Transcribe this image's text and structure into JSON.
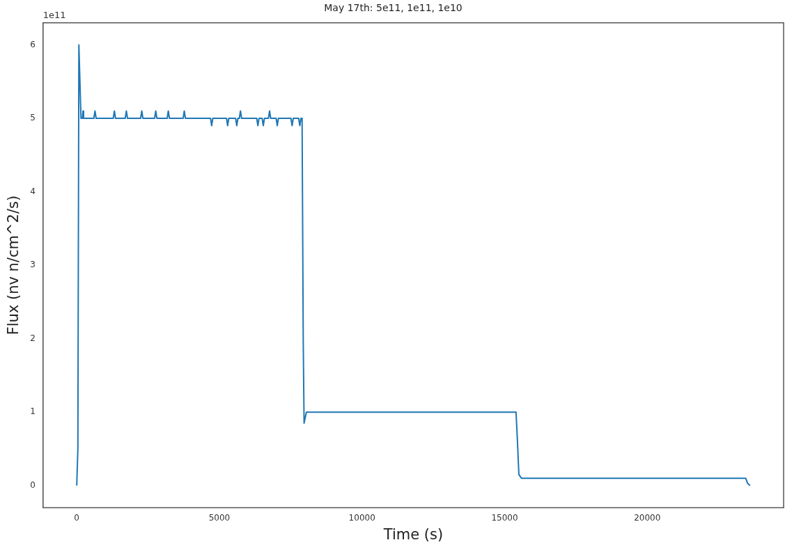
{
  "chart_data": {
    "type": "line",
    "title": "May 17th: 5e11, 1e11, 1e10",
    "xlabel": "Time (s)",
    "ylabel": "Flux (nv n/cm^2/s)",
    "annotations": [
      "1e11"
    ],
    "x": [
      0,
      40,
      75,
      150,
      200,
      220,
      240,
      600,
      640,
      680,
      1280,
      1320,
      1360,
      1700,
      1740,
      1780,
      2240,
      2280,
      2320,
      2730,
      2770,
      2810,
      3170,
      3210,
      3250,
      3730,
      3770,
      3810,
      4690,
      4730,
      4770,
      5250,
      5290,
      5330,
      5570,
      5610,
      5650,
      5700,
      5740,
      5780,
      6310,
      6350,
      6390,
      6500,
      6540,
      6580,
      6720,
      6760,
      6800,
      6990,
      7030,
      7070,
      7510,
      7550,
      7590,
      7780,
      7820,
      7860,
      7900,
      7940,
      7970,
      8050,
      15400,
      15450,
      15500,
      15590,
      23450,
      23520,
      23600
    ],
    "values": [
      0,
      0.5,
      6,
      5,
      5,
      5.1,
      5,
      5,
      5.1,
      5,
      5,
      5.1,
      5,
      5,
      5.1,
      5,
      5,
      5.1,
      5,
      5,
      5.1,
      5,
      5,
      5.1,
      5,
      5,
      5.1,
      5,
      5,
      4.9,
      5,
      5,
      4.9,
      5,
      5,
      4.9,
      5,
      5,
      5.1,
      5,
      5,
      4.9,
      5,
      5,
      4.9,
      5,
      5,
      5.1,
      5,
      5,
      4.9,
      5,
      5,
      4.9,
      5,
      5,
      4.9,
      5,
      5,
      2,
      0.85,
      1,
      1,
      0.6,
      0.15,
      0.1,
      0.1,
      0.03,
      0
    ],
    "color": "#1f77b4",
    "marker": "none",
    "line_style": "solid",
    "grid": false,
    "legend": false,
    "xlim": [
      -1180,
      24780
    ],
    "xticks": [
      0,
      5000,
      10000,
      15000,
      20000
    ],
    "ylim": [
      -0.3,
      6.3
    ],
    "yticks": [
      0,
      1,
      2,
      3,
      4,
      5,
      6
    ]
  }
}
